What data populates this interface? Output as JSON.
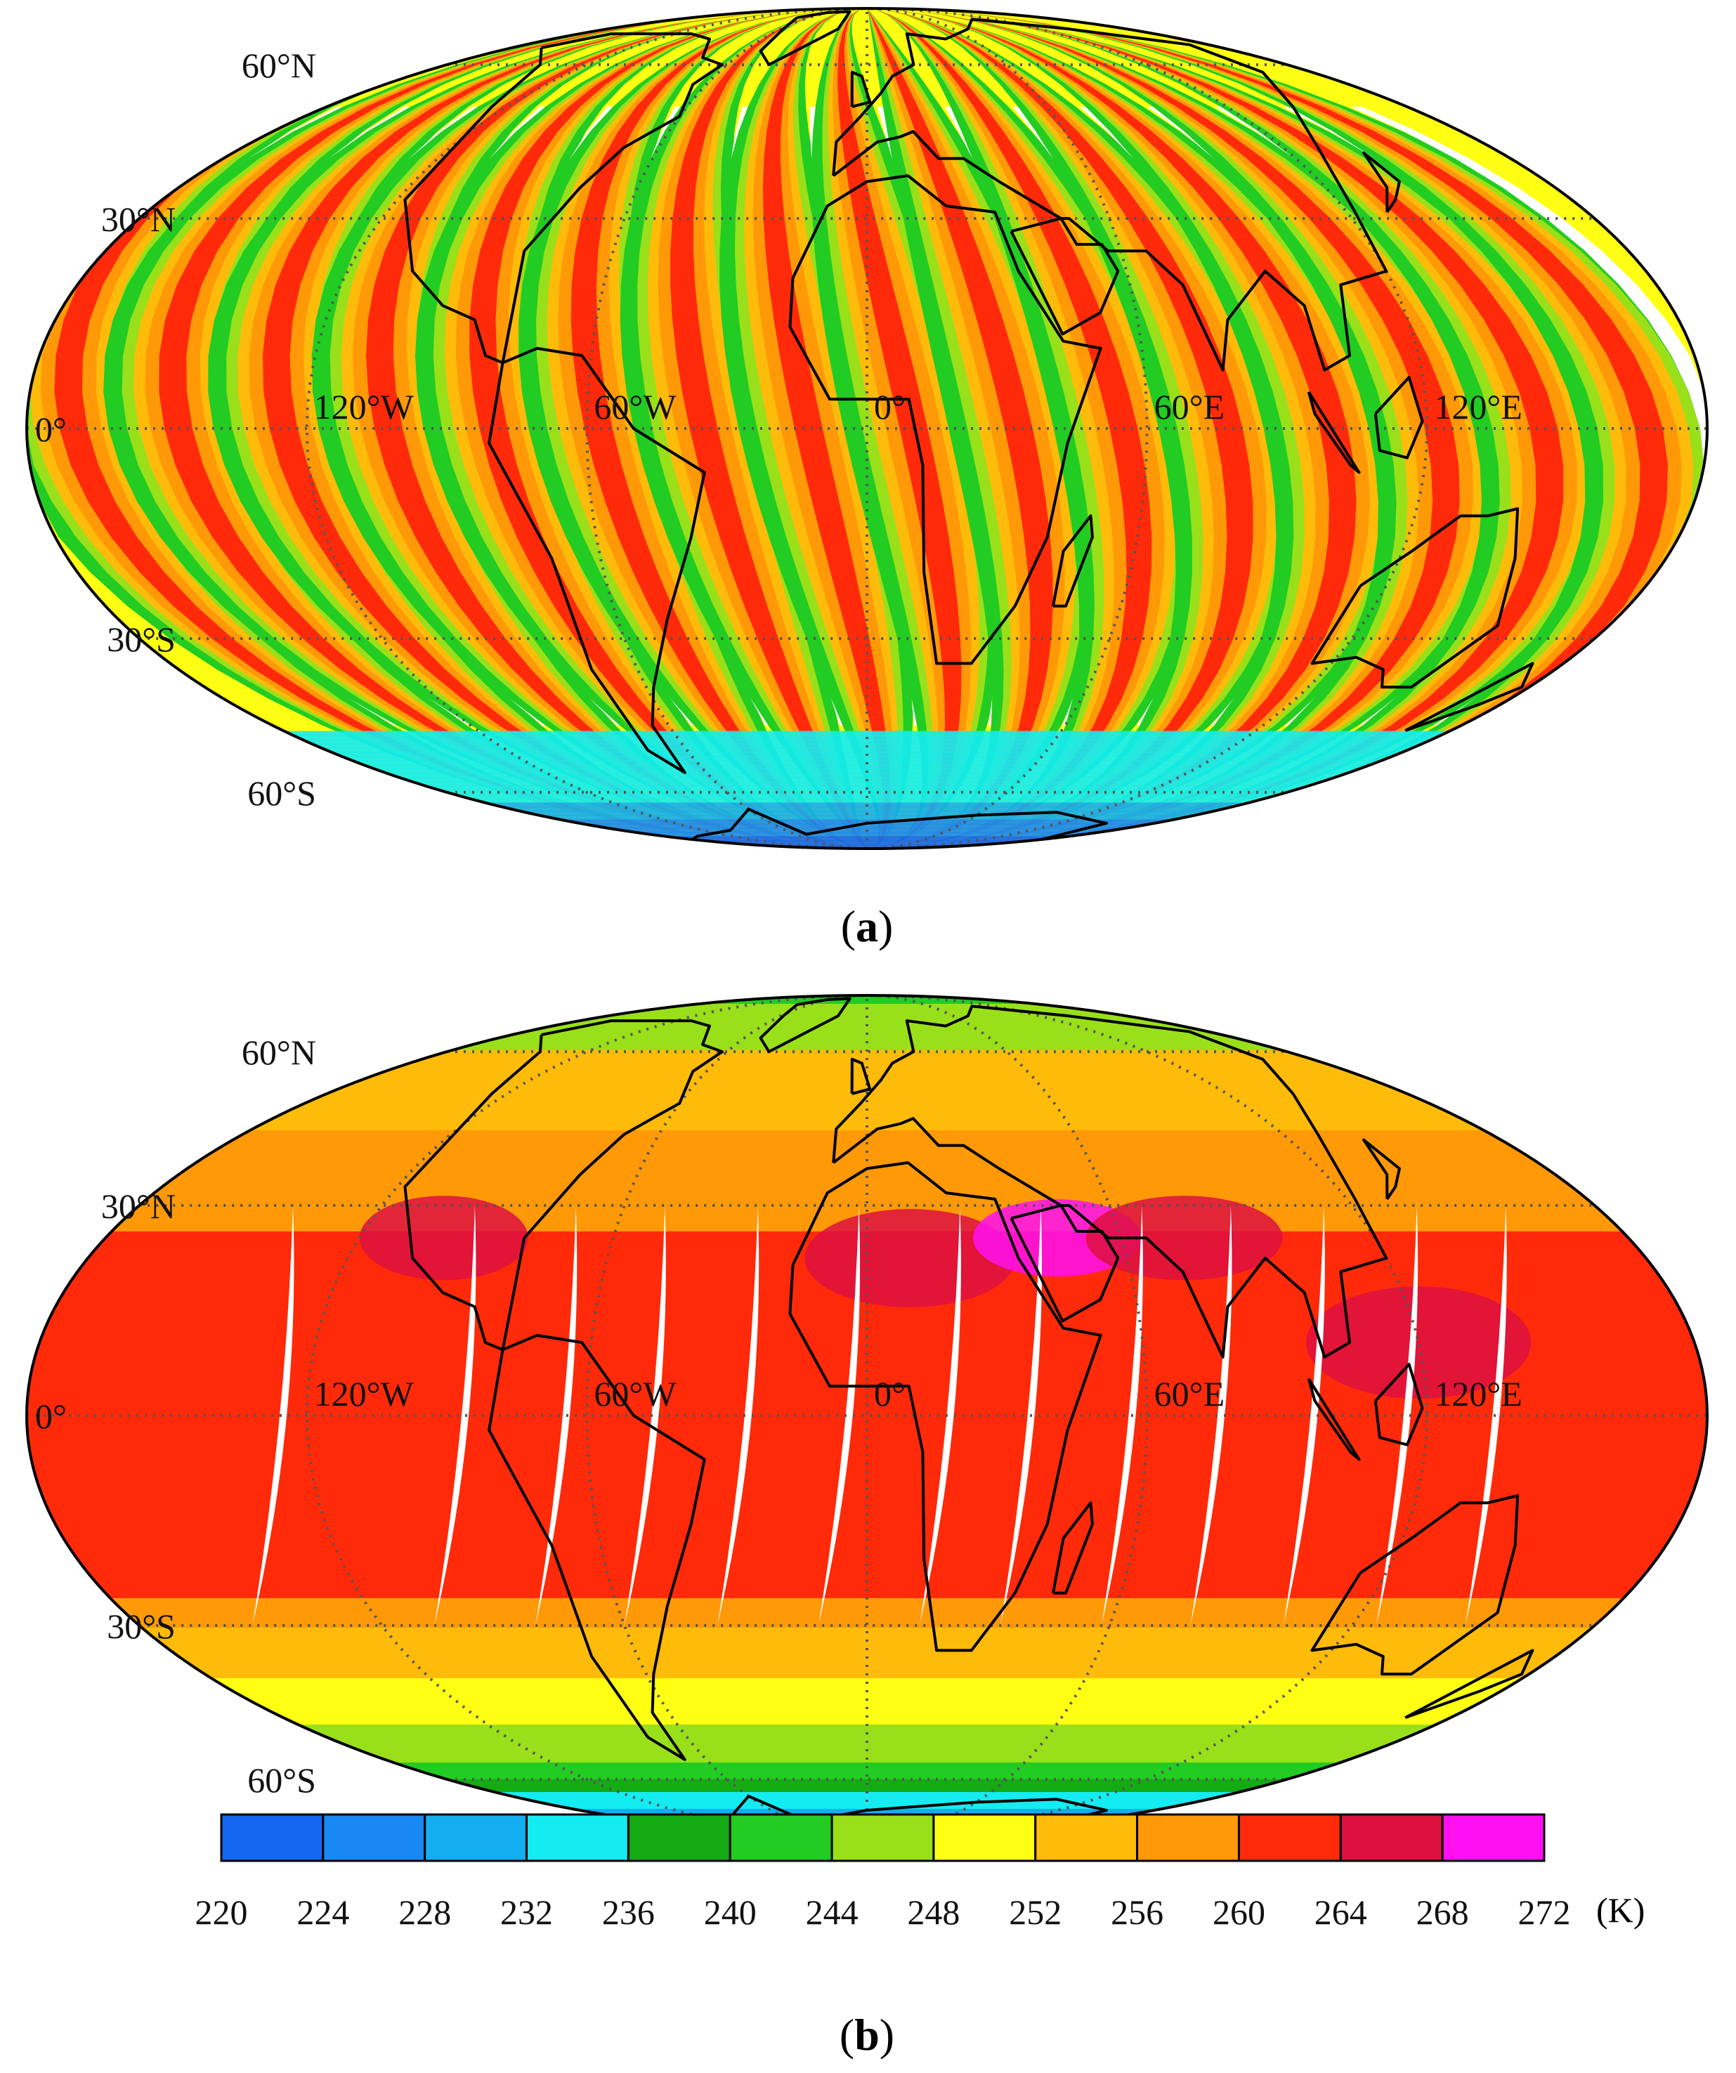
{
  "panels": [
    {
      "id": "a",
      "caption_open": "(",
      "caption_letter": "a",
      "caption_close": ")",
      "map_style": "swath",
      "lat_labels": [
        "60°N",
        "30°N",
        "0°",
        "30°S",
        "60°S"
      ],
      "lon_labels": [
        "120°W",
        "60°W",
        "0°",
        "60°E",
        "120°E"
      ]
    },
    {
      "id": "b",
      "caption_open": "(",
      "caption_letter": "b",
      "caption_close": ")",
      "map_style": "composite",
      "lat_labels": [
        "60°N",
        "30°N",
        "0°",
        "30°S",
        "60°S"
      ],
      "lon_labels": [
        "120°W",
        "60°W",
        "0°",
        "60°E",
        "120°E"
      ]
    }
  ],
  "colorbar": {
    "ticks": [
      "220",
      "224",
      "228",
      "232",
      "236",
      "240",
      "244",
      "248",
      "252",
      "256",
      "260",
      "264",
      "268",
      "272"
    ],
    "unit": "(K)",
    "colors": [
      "#1466ee",
      "#1a88f2",
      "#14aef0",
      "#14ecf2",
      "#14aa14",
      "#22cc22",
      "#99e01a",
      "#ffff14",
      "#ffbb0a",
      "#ff9908",
      "#ff2a0a",
      "#dd1040",
      "#ff10f0"
    ]
  }
}
